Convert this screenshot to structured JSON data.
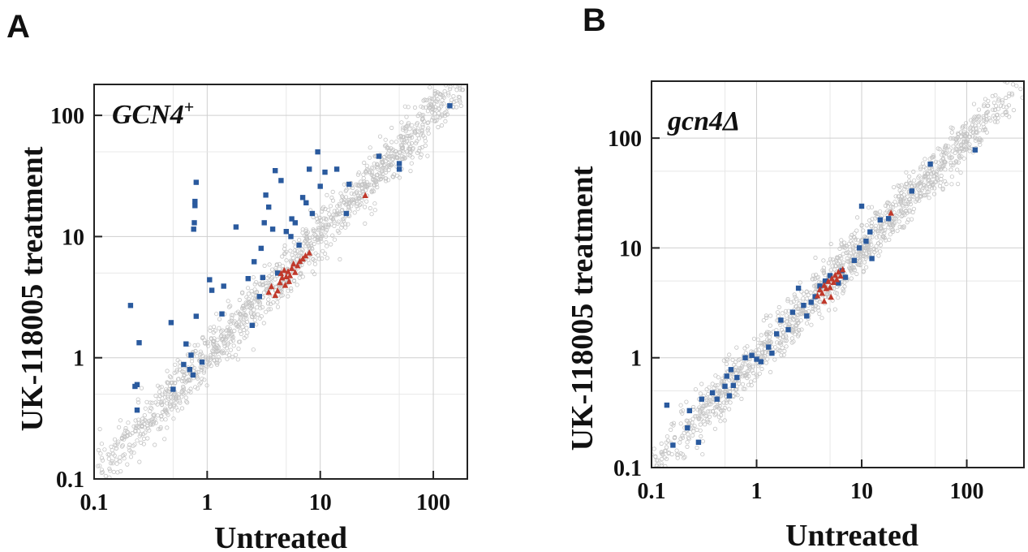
{
  "figure": {
    "panels": [
      {
        "letter": "A",
        "strain_text": "GCN4",
        "strain_sup": "+"
      },
      {
        "letter": "B",
        "strain_text": "gcn4Δ",
        "strain_sup": ""
      }
    ]
  },
  "colors": {
    "background_genes": "#c4c4c4",
    "highlight_blue": "#2a5a9e",
    "highlight_red": "#c0392b",
    "grid": "#cfcfcf"
  },
  "chart_data": [
    {
      "type": "scatter",
      "panel": "A",
      "annotation": "GCN4+",
      "xlabel": "Untreated",
      "ylabel": "UK-118005 treatment",
      "xscale": "log",
      "yscale": "log",
      "xlim": [
        0.1,
        200
      ],
      "ylim": [
        0.1,
        180
      ],
      "xticks": [
        "0.1",
        "1",
        "10",
        "100"
      ],
      "yticks": [
        "0.1",
        "1",
        "10",
        "100"
      ],
      "grid": true,
      "series": [
        {
          "marker": "square",
          "color": "#2a5a9e",
          "points": [
            [
              0.21,
              2.7
            ],
            [
              0.23,
              0.58
            ],
            [
              0.24,
              0.6
            ],
            [
              0.25,
              1.33
            ],
            [
              0.24,
              0.37
            ],
            [
              0.48,
              1.95
            ],
            [
              0.5,
              0.55
            ],
            [
              0.62,
              0.88
            ],
            [
              0.65,
              1.3
            ],
            [
              0.7,
              0.8
            ],
            [
              0.75,
              0.72
            ],
            [
              0.72,
              1.05
            ],
            [
              0.77,
              13
            ],
            [
              0.76,
              11.5
            ],
            [
              0.78,
              18
            ],
            [
              0.78,
              19.5
            ],
            [
              0.8,
              28
            ],
            [
              0.8,
              2.2
            ],
            [
              0.9,
              0.92
            ],
            [
              1.05,
              4.4
            ],
            [
              1.1,
              3.6
            ],
            [
              1.35,
              2.3
            ],
            [
              1.4,
              3.9
            ],
            [
              1.8,
              12
            ],
            [
              2.3,
              4.5
            ],
            [
              2.5,
              1.85
            ],
            [
              2.6,
              6.2
            ],
            [
              2.9,
              3.2
            ],
            [
              3.0,
              8.0
            ],
            [
              3.1,
              4.6
            ],
            [
              3.2,
              13
            ],
            [
              3.3,
              22
            ],
            [
              3.5,
              17.5
            ],
            [
              3.8,
              11.5
            ],
            [
              4.0,
              35
            ],
            [
              4.2,
              5.0
            ],
            [
              4.5,
              29
            ],
            [
              5.0,
              11.0
            ],
            [
              5.5,
              10
            ],
            [
              5.6,
              14
            ],
            [
              6.0,
              13
            ],
            [
              6.5,
              8.5
            ],
            [
              7.0,
              21
            ],
            [
              7.5,
              19
            ],
            [
              8.0,
              36
            ],
            [
              8.5,
              15.5
            ],
            [
              9.5,
              50
            ],
            [
              10,
              26
            ],
            [
              11,
              34
            ],
            [
              14,
              36
            ],
            [
              17,
              15.5
            ],
            [
              18,
              27
            ],
            [
              33,
              46
            ],
            [
              50,
              36
            ],
            [
              50,
              40
            ],
            [
              140,
              120
            ]
          ]
        },
        {
          "marker": "triangle",
          "color": "#c0392b",
          "points": [
            [
              3.5,
              3.5
            ],
            [
              3.7,
              3.9
            ],
            [
              4.0,
              3.3
            ],
            [
              4.2,
              3.6
            ],
            [
              4.4,
              4.2
            ],
            [
              4.5,
              5.0
            ],
            [
              4.6,
              4.6
            ],
            [
              4.8,
              5.3
            ],
            [
              5.0,
              4.7
            ],
            [
              5.2,
              5.2
            ],
            [
              5.4,
              4.8
            ],
            [
              5.6,
              5.5
            ],
            [
              5.8,
              6.0
            ],
            [
              6.0,
              5.1
            ],
            [
              6.3,
              5.8
            ],
            [
              6.6,
              6.3
            ],
            [
              7.0,
              6.6
            ],
            [
              7.4,
              7.0
            ],
            [
              8.0,
              7.4
            ],
            [
              5.3,
              4.3
            ],
            [
              4.9,
              4.0
            ],
            [
              25,
              22
            ]
          ]
        }
      ]
    },
    {
      "type": "scatter",
      "panel": "B",
      "annotation": "gcn4Δ",
      "xlabel": "Untreated",
      "ylabel": "UK-118005 treatment",
      "xscale": "log",
      "yscale": "log",
      "xlim": [
        0.1,
        350
      ],
      "ylim": [
        0.1,
        330
      ],
      "xticks": [
        "0.1",
        "1",
        "10",
        "100"
      ],
      "yticks": [
        "0.1",
        "1",
        "10",
        "100"
      ],
      "grid": true,
      "series": [
        {
          "marker": "square",
          "color": "#2a5a9e",
          "points": [
            [
              0.14,
              0.37
            ],
            [
              0.16,
              0.16
            ],
            [
              0.22,
              0.23
            ],
            [
              0.23,
              0.33
            ],
            [
              0.28,
              0.17
            ],
            [
              0.3,
              0.42
            ],
            [
              0.38,
              0.48
            ],
            [
              0.42,
              0.42
            ],
            [
              0.5,
              0.55
            ],
            [
              0.52,
              0.68
            ],
            [
              0.55,
              0.45
            ],
            [
              0.57,
              0.78
            ],
            [
              0.6,
              0.56
            ],
            [
              0.65,
              0.66
            ],
            [
              0.78,
              1.0
            ],
            [
              0.9,
              1.05
            ],
            [
              1.0,
              0.97
            ],
            [
              1.1,
              0.92
            ],
            [
              1.3,
              1.25
            ],
            [
              1.4,
              1.1
            ],
            [
              1.55,
              1.65
            ],
            [
              1.7,
              2.2
            ],
            [
              2.0,
              1.8
            ],
            [
              2.2,
              2.6
            ],
            [
              2.5,
              4.3
            ],
            [
              2.8,
              3.0
            ],
            [
              3.0,
              2.4
            ],
            [
              3.3,
              3.2
            ],
            [
              3.6,
              3.6
            ],
            [
              4.0,
              4.5
            ],
            [
              4.5,
              5.0
            ],
            [
              5.0,
              5.6
            ],
            [
              6.0,
              4.8
            ],
            [
              6.5,
              6.2
            ],
            [
              7.0,
              5.4
            ],
            [
              8.5,
              7.7
            ],
            [
              9.5,
              10
            ],
            [
              10,
              24
            ],
            [
              11,
              11.5
            ],
            [
              12,
              14
            ],
            [
              12.5,
              8.0
            ],
            [
              15,
              18
            ],
            [
              18,
              18.5
            ],
            [
              30,
              33
            ],
            [
              45,
              58
            ],
            [
              120,
              78
            ]
          ]
        },
        {
          "marker": "triangle",
          "color": "#c0392b",
          "points": [
            [
              3.8,
              3.7
            ],
            [
              4.0,
              4.2
            ],
            [
              4.2,
              3.9
            ],
            [
              4.4,
              4.6
            ],
            [
              4.6,
              4.3
            ],
            [
              4.8,
              5.0
            ],
            [
              5.0,
              4.4
            ],
            [
              5.2,
              5.3
            ],
            [
              5.4,
              4.9
            ],
            [
              5.6,
              5.7
            ],
            [
              5.8,
              5.2
            ],
            [
              6.0,
              6.1
            ],
            [
              6.3,
              5.6
            ],
            [
              6.6,
              6.4
            ],
            [
              5.1,
              3.6
            ],
            [
              4.4,
              3.3
            ],
            [
              19,
              21
            ]
          ]
        }
      ]
    }
  ]
}
